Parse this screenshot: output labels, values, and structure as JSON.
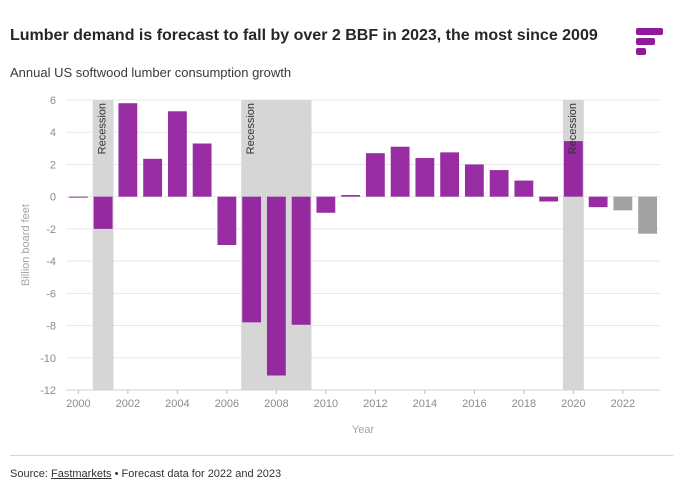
{
  "header": {
    "title": "Lumber demand is forecast to fall by over 2 BBF in 2023, the most since 2009",
    "subtitle": "Annual US softwood lumber consumption growth"
  },
  "footer": {
    "source_prefix": "Source:",
    "source_link": "Fastmarkets",
    "bullet": "•",
    "note": "Forecast data for 2022 and 2023"
  },
  "colors": {
    "actual": "#8f1a9b",
    "forecast": "#9a9a9a",
    "recession_band": "#d6d6d6",
    "grid": "#e8e8e8",
    "logo": "#8f1a9b"
  },
  "chart_data": {
    "type": "bar",
    "xlabel": "Year",
    "ylabel": "Billion board feet",
    "ylim": [
      -12,
      6
    ],
    "yticks": [
      6,
      4,
      2,
      0,
      -2,
      -4,
      -6,
      -8,
      -10,
      -12
    ],
    "xticks": [
      2000,
      2002,
      2004,
      2006,
      2008,
      2010,
      2012,
      2014,
      2016,
      2018,
      2020,
      2022
    ],
    "grid": true,
    "categories": [
      2000,
      2001,
      2002,
      2003,
      2004,
      2005,
      2006,
      2007,
      2008,
      2009,
      2010,
      2011,
      2012,
      2013,
      2014,
      2015,
      2016,
      2017,
      2018,
      2019,
      2020,
      2021,
      2022,
      2023
    ],
    "values": [
      -0.05,
      -2.0,
      5.8,
      2.35,
      5.3,
      3.3,
      -3.0,
      -7.8,
      -11.1,
      -7.95,
      -1.0,
      0.1,
      2.7,
      3.1,
      2.4,
      2.75,
      2.0,
      1.65,
      1.0,
      -0.3,
      3.45,
      -0.65,
      -0.85,
      -2.3
    ],
    "forecast_years": [
      2022,
      2023
    ],
    "recessions": [
      {
        "label": "Recession",
        "start": 2001,
        "end": 2001
      },
      {
        "label": "Recession",
        "start": 2007,
        "end": 2009
      },
      {
        "label": "Recession",
        "start": 2020,
        "end": 2020
      }
    ]
  }
}
